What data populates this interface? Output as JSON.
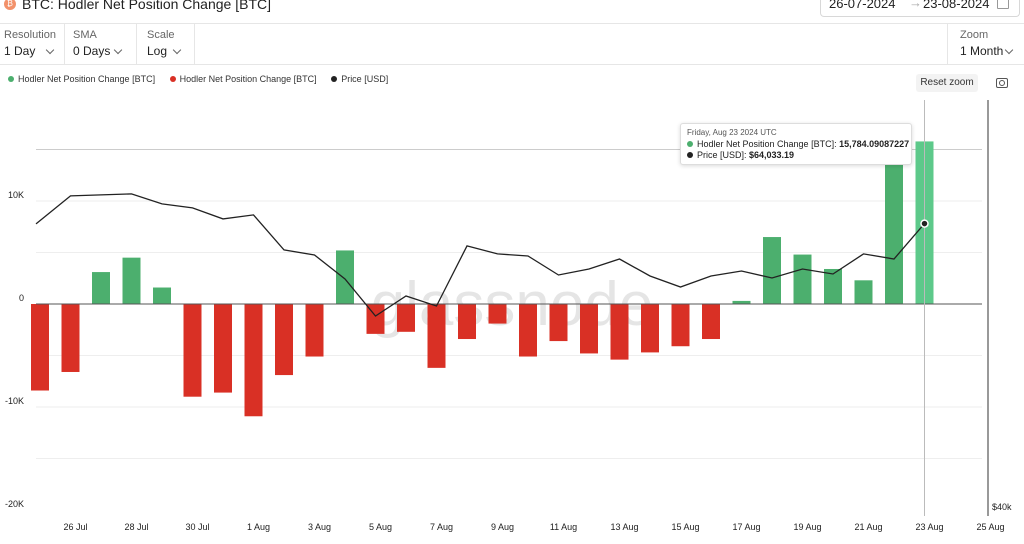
{
  "header": {
    "title": "BTC: Hodler Net Position Change [BTC]",
    "logo": "bitcoin-logo-icon"
  },
  "date_range": {
    "start": "26-07-2024",
    "end": "23-08-2024",
    "arrow": "→"
  },
  "controls": {
    "resolution": {
      "label": "Resolution",
      "value": "1 Day"
    },
    "sma": {
      "label": "SMA",
      "value": "0 Days"
    },
    "scale": {
      "label": "Scale",
      "value": "Log"
    },
    "zoom": {
      "label": "Zoom",
      "value": "1 Month"
    }
  },
  "buttons": {
    "reset_zoom": "Reset zoom"
  },
  "watermark": "glassnode",
  "colors": {
    "positive": "#4caf6e",
    "negative": "#d93025",
    "price": "#222222",
    "last_bar": "#5dc98a"
  },
  "tooltip": {
    "date": "Friday, Aug 23 2024 UTC",
    "series1_label": "Hodler Net Position Change [BTC]: ",
    "series1_value": "15,784.09087227",
    "series2_label": "Price [USD]: ",
    "series2_value": "$64,033.19"
  },
  "chart_data": {
    "type": "bar",
    "title": "BTC: Hodler Net Position Change [BTC]",
    "legend": [
      {
        "name": "Hodler Net Position Change [BTC]",
        "color": "#4caf6e"
      },
      {
        "name": "Hodler Net Position Change [BTC]",
        "color": "#d93025"
      },
      {
        "name": "Price [USD]",
        "color": "#222222"
      }
    ],
    "legend_placement": "top-left",
    "x_tick_labels": [
      "26 Jul",
      "28 Jul",
      "30 Jul",
      "1 Aug",
      "3 Aug",
      "5 Aug",
      "7 Aug",
      "9 Aug",
      "11 Aug",
      "13 Aug",
      "15 Aug",
      "17 Aug",
      "19 Aug",
      "21 Aug",
      "23 Aug",
      "25 Aug"
    ],
    "y_tick_labels": [
      "10K",
      "0",
      "-10K",
      "-20K"
    ],
    "y_ticks": [
      10000,
      0,
      -10000,
      -20000
    ],
    "ylim": [
      -20000,
      20000
    ],
    "right_axis_label": "$40k",
    "grid": true,
    "categories": [
      "Jul 25",
      "Jul 26",
      "Jul 27",
      "Jul 28",
      "Jul 29",
      "Jul 30",
      "Jul 31",
      "Aug 1",
      "Aug 2",
      "Aug 3",
      "Aug 4",
      "Aug 5",
      "Aug 6",
      "Aug 7",
      "Aug 8",
      "Aug 9",
      "Aug 10",
      "Aug 11",
      "Aug 12",
      "Aug 13",
      "Aug 14",
      "Aug 15",
      "Aug 16",
      "Aug 17",
      "Aug 18",
      "Aug 19",
      "Aug 20",
      "Aug 21",
      "Aug 22",
      "Aug 23"
    ],
    "series": [
      {
        "name": "Hodler Net Position Change [BTC]",
        "values": [
          -8400,
          -6600,
          3100,
          4500,
          1600,
          -9000,
          -8600,
          -10900,
          -6900,
          -5100,
          5200,
          -2900,
          -2700,
          -6200,
          -3400,
          -1900,
          -5100,
          -3600,
          -4800,
          -5400,
          -4700,
          -4100,
          -3400,
          300,
          6500,
          4800,
          3400,
          2300,
          14000,
          15784.09
        ]
      },
      {
        "name": "Price [USD]",
        "values": [
          64000,
          66800,
          66900,
          67000,
          66000,
          65600,
          64500,
          64900,
          61400,
          60900,
          58500,
          54800,
          56800,
          55800,
          61800,
          61000,
          60800,
          58900,
          59500,
          60500,
          58800,
          57700,
          58800,
          59300,
          58600,
          59500,
          59000,
          61000,
          60500,
          64033.19
        ]
      }
    ]
  }
}
